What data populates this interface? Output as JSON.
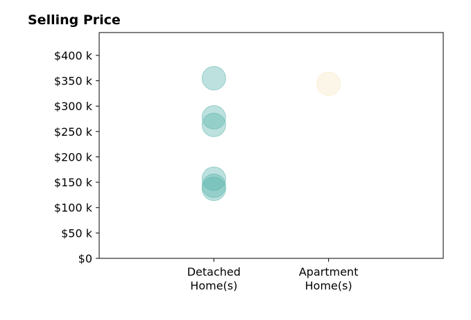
{
  "chart_data": {
    "type": "scatter",
    "title": "Selling Price",
    "xlabel": "",
    "ylabel": "",
    "categories": [
      [
        "Detached",
        "Home(s)"
      ],
      [
        "Apartment",
        "Home(s)"
      ]
    ],
    "xlim": [
      0,
      3
    ],
    "ylim": [
      0,
      445000
    ],
    "yticks": [
      {
        "value": 0,
        "label": "$0"
      },
      {
        "value": 50000,
        "label": "$50 k"
      },
      {
        "value": 100000,
        "label": "$100 k"
      },
      {
        "value": 150000,
        "label": "$150 k"
      },
      {
        "value": 200000,
        "label": "$200 k"
      },
      {
        "value": 250000,
        "label": "$250 k"
      },
      {
        "value": 300000,
        "label": "$300 k"
      },
      {
        "value": 350000,
        "label": "$350 k"
      },
      {
        "value": 400000,
        "label": "$400 k"
      }
    ],
    "grid": false,
    "series": [
      {
        "category_index": 0,
        "color": "#5ab4ac",
        "values": [
          355000,
          278000,
          263000,
          157000,
          143000,
          137000
        ]
      },
      {
        "category_index": 1,
        "color": "#f6e8c3",
        "values": [
          344000
        ]
      }
    ]
  }
}
